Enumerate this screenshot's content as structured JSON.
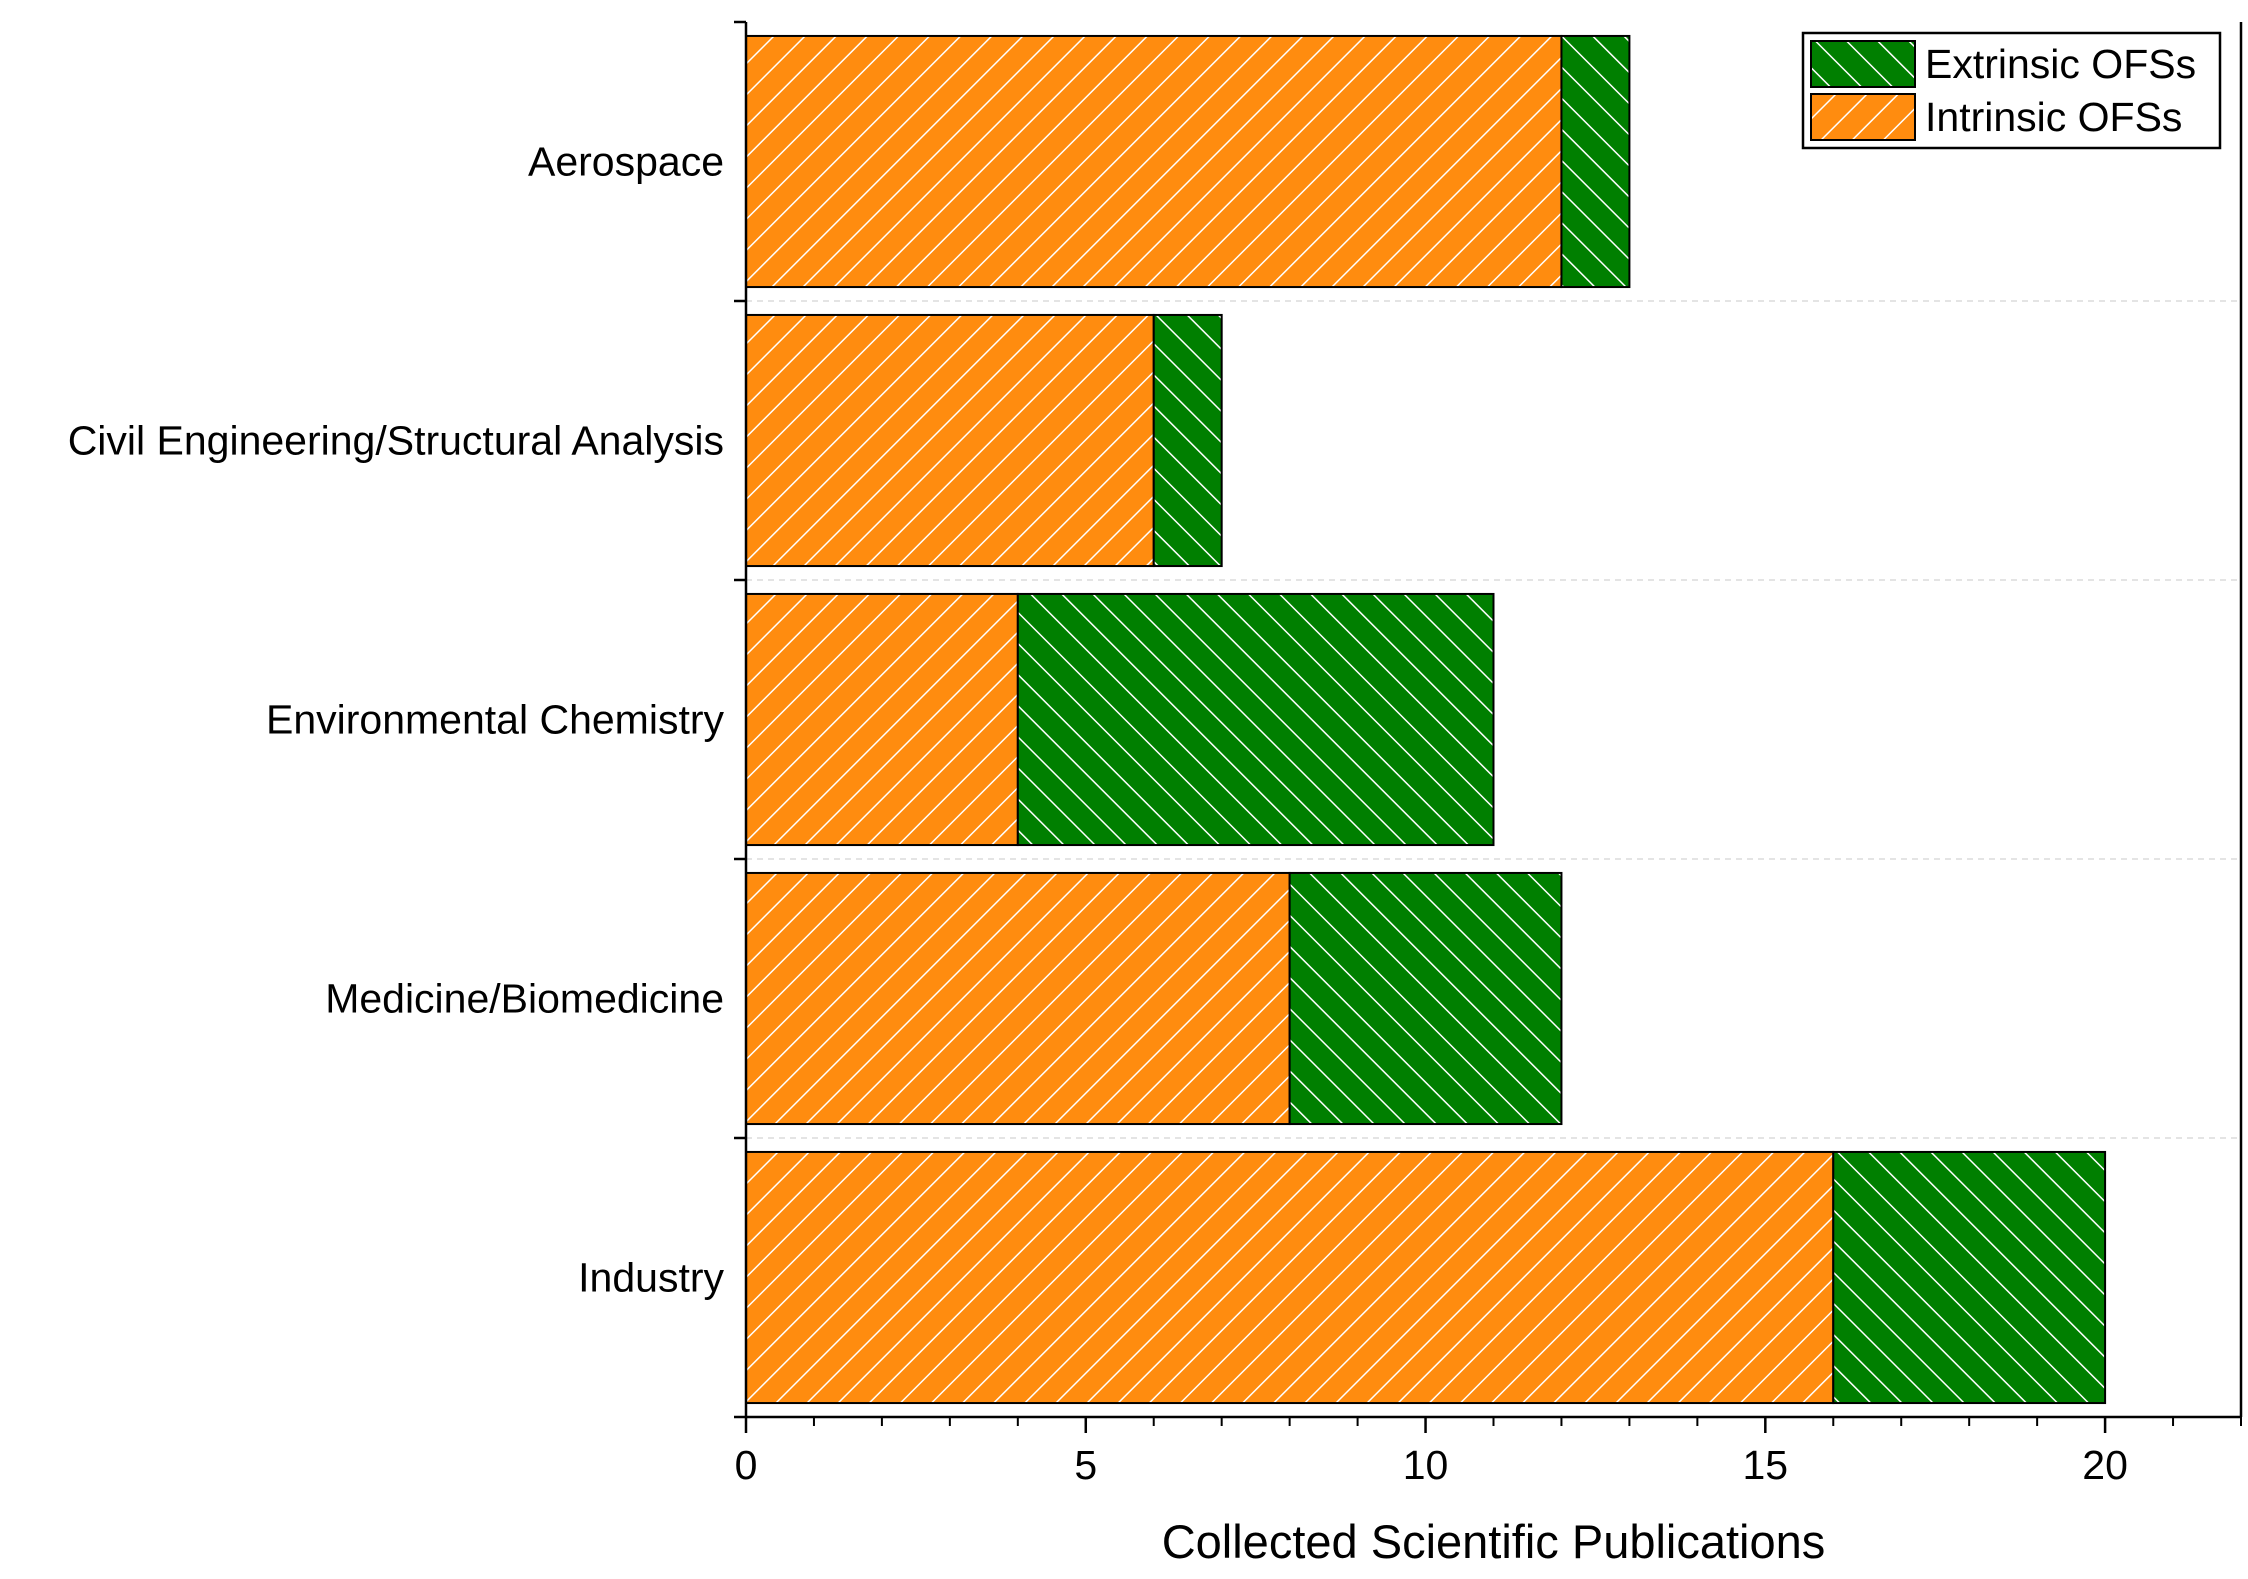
{
  "chart_data": {
    "type": "bar",
    "orientation": "horizontal",
    "stacked": true,
    "categories": [
      "Aerospace",
      "Civil Engineering/Structural Analysis",
      "Environmental Chemistry",
      "Medicine/Biomedicine",
      "Industry"
    ],
    "series": [
      {
        "name": "Intrinsic OFSs",
        "color": "#ff8c0f",
        "hatch": "forward-diagonal",
        "values": [
          12,
          6,
          4,
          8,
          16
        ]
      },
      {
        "name": "Extrinsic OFSs",
        "color": "#007f00",
        "hatch": "backward-diagonal",
        "values": [
          1,
          1,
          7,
          4,
          4
        ]
      }
    ],
    "title": "",
    "xlabel": "Collected Scientific Publications",
    "ylabel": "",
    "xlim": [
      0,
      22
    ],
    "xticks": [
      "0",
      "5",
      "10",
      "15",
      "20"
    ],
    "legend": {
      "position": "top-right",
      "entries": [
        "Extrinsic OFSs",
        "Intrinsic OFSs"
      ]
    },
    "grid": "horizontal dashed separators between categories"
  }
}
